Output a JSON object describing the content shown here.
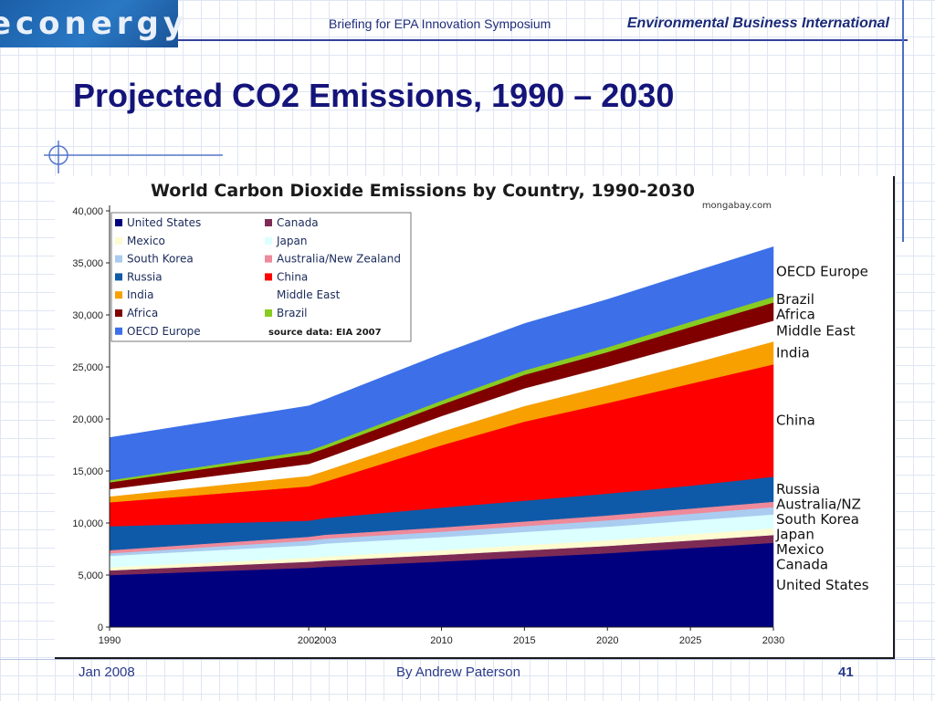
{
  "header": {
    "logo_text": "econergy",
    "subtitle": "Briefing for EPA Innovation Symposium",
    "organization": "Environmental Business International"
  },
  "slide": {
    "title": "Projected CO2 Emissions, 1990 – 2030"
  },
  "footer": {
    "date": "Jan 2008",
    "author": "By Andrew Paterson",
    "page": "41"
  },
  "chart_data": {
    "type": "area",
    "stacked": true,
    "title": "World Carbon Dioxide Emissions by Country, 1990-2030",
    "credit": "mongabay.com",
    "source_note": "source data: EIA 2007",
    "x": [
      "1990",
      "2002",
      "2003",
      "2010",
      "2015",
      "2020",
      "2025",
      "2030"
    ],
    "ylim": [
      0,
      40000
    ],
    "y_ticks": [
      "0",
      "5,000",
      "10,000",
      "15,000",
      "20,000",
      "25,000",
      "30,000",
      "35,000",
      "40,000"
    ],
    "grid": false,
    "legend_placement": "top-left",
    "series": [
      {
        "name": "United States",
        "color": "#00007f",
        "values": [
          5000,
          5700,
          5800,
          6300,
          6700,
          7100,
          7600,
          8100
        ]
      },
      {
        "name": "Canada",
        "color": "#7d2b55",
        "values": [
          450,
          580,
          590,
          640,
          670,
          700,
          720,
          750
        ]
      },
      {
        "name": "Mexico",
        "color": "#fdfbd0",
        "values": [
          300,
          380,
          390,
          450,
          500,
          550,
          600,
          650
        ]
      },
      {
        "name": "Japan",
        "color": "#dcffff",
        "values": [
          1100,
          1200,
          1250,
          1260,
          1280,
          1300,
          1320,
          1330
        ]
      },
      {
        "name": "South Korea",
        "color": "#aaccf0",
        "values": [
          240,
          450,
          470,
          520,
          560,
          610,
          650,
          700
        ]
      },
      {
        "name": "Australia/New Zealand",
        "color": "#ee8a9a",
        "values": [
          300,
          370,
          380,
          410,
          440,
          470,
          500,
          520
        ]
      },
      {
        "name": "Russia",
        "color": "#0f5aa8",
        "values": [
          2300,
          1550,
          1600,
          1900,
          2000,
          2100,
          2200,
          2400
        ]
      },
      {
        "name": "China",
        "color": "#ff0000",
        "values": [
          2300,
          3300,
          3500,
          6000,
          7600,
          8700,
          9800,
          10800
        ]
      },
      {
        "name": "India",
        "color": "#f7a000",
        "values": [
          570,
          1000,
          1050,
          1300,
          1500,
          1700,
          1900,
          2200
        ]
      },
      {
        "name": "Middle East",
        "color": "#ffffff",
        "values": [
          700,
          1150,
          1200,
          1500,
          1700,
          1800,
          1950,
          2000
        ]
      },
      {
        "name": "Africa",
        "color": "#800000",
        "values": [
          650,
          950,
          950,
          1100,
          1300,
          1400,
          1600,
          1750
        ]
      },
      {
        "name": "Brazil",
        "color": "#88cc22",
        "values": [
          200,
          330,
          330,
          380,
          420,
          460,
          500,
          550
        ]
      },
      {
        "name": "OECD Europe",
        "color": "#3c6fe8",
        "values": [
          4100,
          4300,
          4350,
          4500,
          4500,
          4600,
          4700,
          4800
        ]
      }
    ],
    "right_labels": [
      {
        "text": "OECD Europe",
        "series": "OECD Europe"
      },
      {
        "text": "Brazil",
        "series": "Brazil"
      },
      {
        "text": "Africa",
        "series": "Africa"
      },
      {
        "text": "Middle East",
        "series": "Middle East"
      },
      {
        "text": "India",
        "series": "India"
      },
      {
        "text": "China",
        "series": "China"
      },
      {
        "text": "Russia",
        "series": "Russia"
      },
      {
        "text": "Australia/NZ",
        "series": "Australia/New Zealand"
      },
      {
        "text": "South Korea",
        "series": "South Korea"
      },
      {
        "text": "Japan",
        "series": "Japan"
      },
      {
        "text": "Mexico",
        "series": "Mexico"
      },
      {
        "text": "Canada",
        "series": "Canada"
      },
      {
        "text": "United States",
        "series": "United States"
      }
    ]
  }
}
